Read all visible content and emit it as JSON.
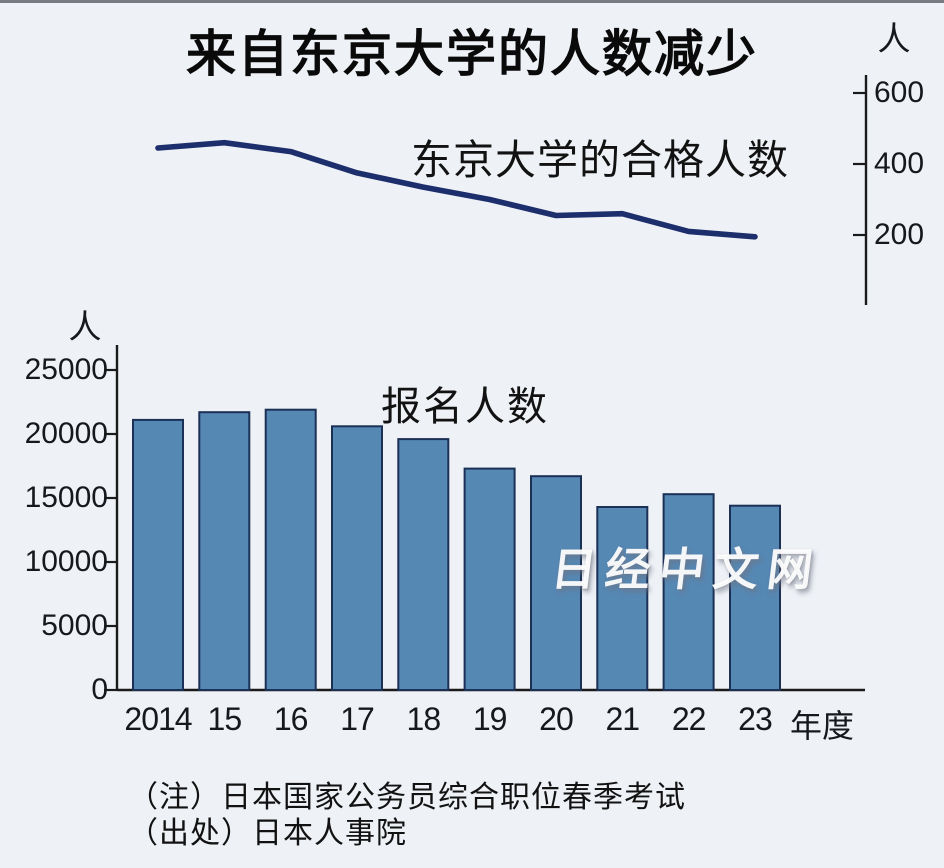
{
  "page_title": "来自东京大学的人数减少",
  "watermark": "日经中文网",
  "notes": [
    "（注）日本国家公务员综合职位春季考试",
    "（出处）日本人事院"
  ],
  "colors": {
    "background": "#eef1f6",
    "line_stroke": "#1c2e6b",
    "bar_fill": "#5688b4",
    "bar_border": "#1b3055",
    "axis": "#1a1a1a",
    "text": "#121212"
  },
  "chart_data": [
    {
      "type": "line",
      "title": "东京大学的合格人数",
      "unit_label": "人",
      "categories": [
        "2014",
        "15",
        "16",
        "17",
        "18",
        "19",
        "20",
        "21",
        "22",
        "23"
      ],
      "values": [
        445,
        460,
        435,
        375,
        335,
        300,
        255,
        260,
        210,
        195
      ],
      "ylabel": "人",
      "yticks": [
        600,
        400,
        200
      ],
      "ylim": [
        0,
        650
      ],
      "axis_side": "right",
      "legend_position": "inline-label",
      "grid": false
    },
    {
      "type": "bar",
      "title": "报名人数",
      "unit_label": "人",
      "categories": [
        "2014",
        "15",
        "16",
        "17",
        "18",
        "19",
        "20",
        "21",
        "22",
        "23"
      ],
      "values": [
        21100,
        21700,
        21900,
        20600,
        19600,
        17300,
        16700,
        14300,
        15300,
        14400
      ],
      "xlabel": "年度",
      "ylabel": "人",
      "yticks": [
        25000,
        20000,
        15000,
        10000,
        5000,
        0
      ],
      "ylim": [
        0,
        26500
      ],
      "axis_side": "left",
      "legend_position": "inline-label",
      "grid": false
    }
  ]
}
